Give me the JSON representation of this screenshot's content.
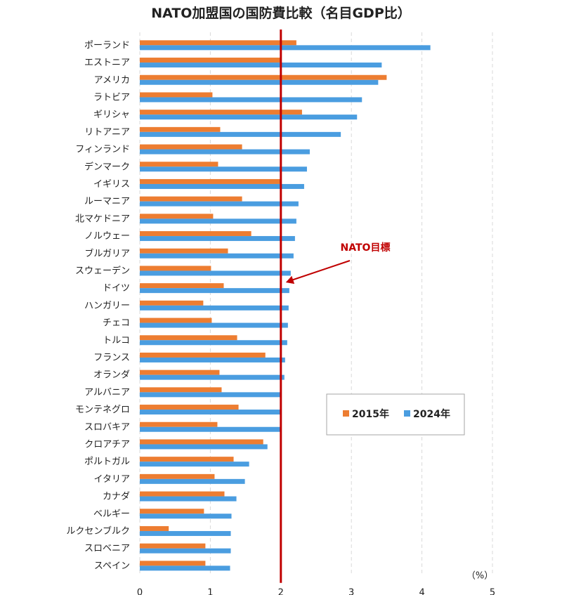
{
  "chart_data": {
    "type": "bar",
    "orientation": "horizontal",
    "title": "NATO加盟国の国防費比較（名目GDP比）",
    "unit_label": "（%）",
    "categories": [
      "ポーランド",
      "エストニア",
      "アメリカ",
      "ラトビア",
      "ギリシャ",
      "リトアニア",
      "フィンランド",
      "デンマーク",
      "イギリス",
      "ルーマニア",
      "北マケドニア",
      "ノルウェー",
      "ブルガリア",
      "スウェーデン",
      "ドイツ",
      "ハンガリー",
      "チェコ",
      "トルコ",
      "フランス",
      "オランダ",
      "アルバニア",
      "モンテネグロ",
      "スロバキア",
      "クロアチア",
      "ポルトガル",
      "イタリア",
      "カナダ",
      "ベルギー",
      "ルクセンブルク",
      "スロベニア",
      "スペイン"
    ],
    "series": [
      {
        "name": "2015年",
        "color": "#ed7d31",
        "values": [
          2.22,
          2.01,
          3.5,
          1.03,
          2.3,
          1.14,
          1.45,
          1.11,
          2.01,
          1.45,
          1.04,
          1.58,
          1.25,
          1.01,
          1.19,
          0.9,
          1.02,
          1.38,
          1.78,
          1.13,
          1.16,
          1.4,
          1.1,
          1.75,
          1.33,
          1.06,
          1.2,
          0.91,
          0.41,
          0.93,
          0.93
        ]
      },
      {
        "name": "2024年",
        "color": "#4a9de0",
        "values": [
          4.12,
          3.43,
          3.38,
          3.15,
          3.08,
          2.85,
          2.41,
          2.37,
          2.33,
          2.25,
          2.22,
          2.2,
          2.18,
          2.14,
          2.12,
          2.11,
          2.1,
          2.09,
          2.06,
          2.05,
          2.0,
          2.0,
          2.0,
          1.81,
          1.55,
          1.49,
          1.37,
          1.3,
          1.29,
          1.29,
          1.28
        ]
      }
    ],
    "xlim": [
      0,
      5
    ],
    "xticks": [
      "0",
      "1",
      "2",
      "3",
      "4",
      "5"
    ],
    "grid": "vertical dashed",
    "reference_line": {
      "value": 2,
      "label": "NATO目標",
      "color": "#c00000"
    },
    "legend": {
      "placement": "right-middle",
      "items": [
        "2015年",
        "2024年"
      ]
    }
  }
}
